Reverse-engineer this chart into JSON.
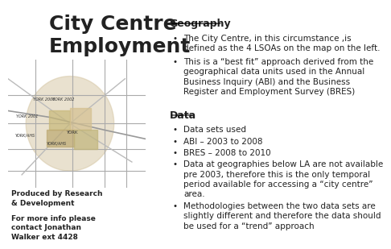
{
  "title": "City Centre\nEmployment",
  "title_fontsize": 18,
  "title_fontweight": "bold",
  "background_color": "#ffffff",
  "section1_heading": "Geography",
  "section1_bullets": [
    "The City Centre, in this circumstance ,is\ndefined as the 4 LSOAs on the map on the left.",
    "This is a “best fit” approach derived from the\ngeographical data units used in the Annual\nBusiness Inquiry (ABI) and the Business\nRegister and Employment Survey (BRES)"
  ],
  "section2_heading": "Data",
  "section2_bullets": [
    "Data sets used",
    "ABI – 2003 to 2008",
    "BRES – 2008 to 2010",
    "Data at geographies below LA are not available\npre 2003, therefore this is the only temporal\nperiod available for accessing a “city centre”\narea.",
    "Methodologies between the two data sets are\nslightly different and therefore the data should\nbe used for a “trend” approach"
  ],
  "footer_line1": "Produced by Research",
  "footer_line2": "& Development",
  "footer_line4": "For more info please",
  "footer_line5": "contact Jonathan",
  "footer_line6": "Walker ext 4428",
  "text_color": "#222222",
  "bullet_char": "•",
  "font_size_body": 7.5,
  "font_size_heading": 9,
  "font_size_footer": 6.5,
  "map_bg": "#e8dfc8"
}
